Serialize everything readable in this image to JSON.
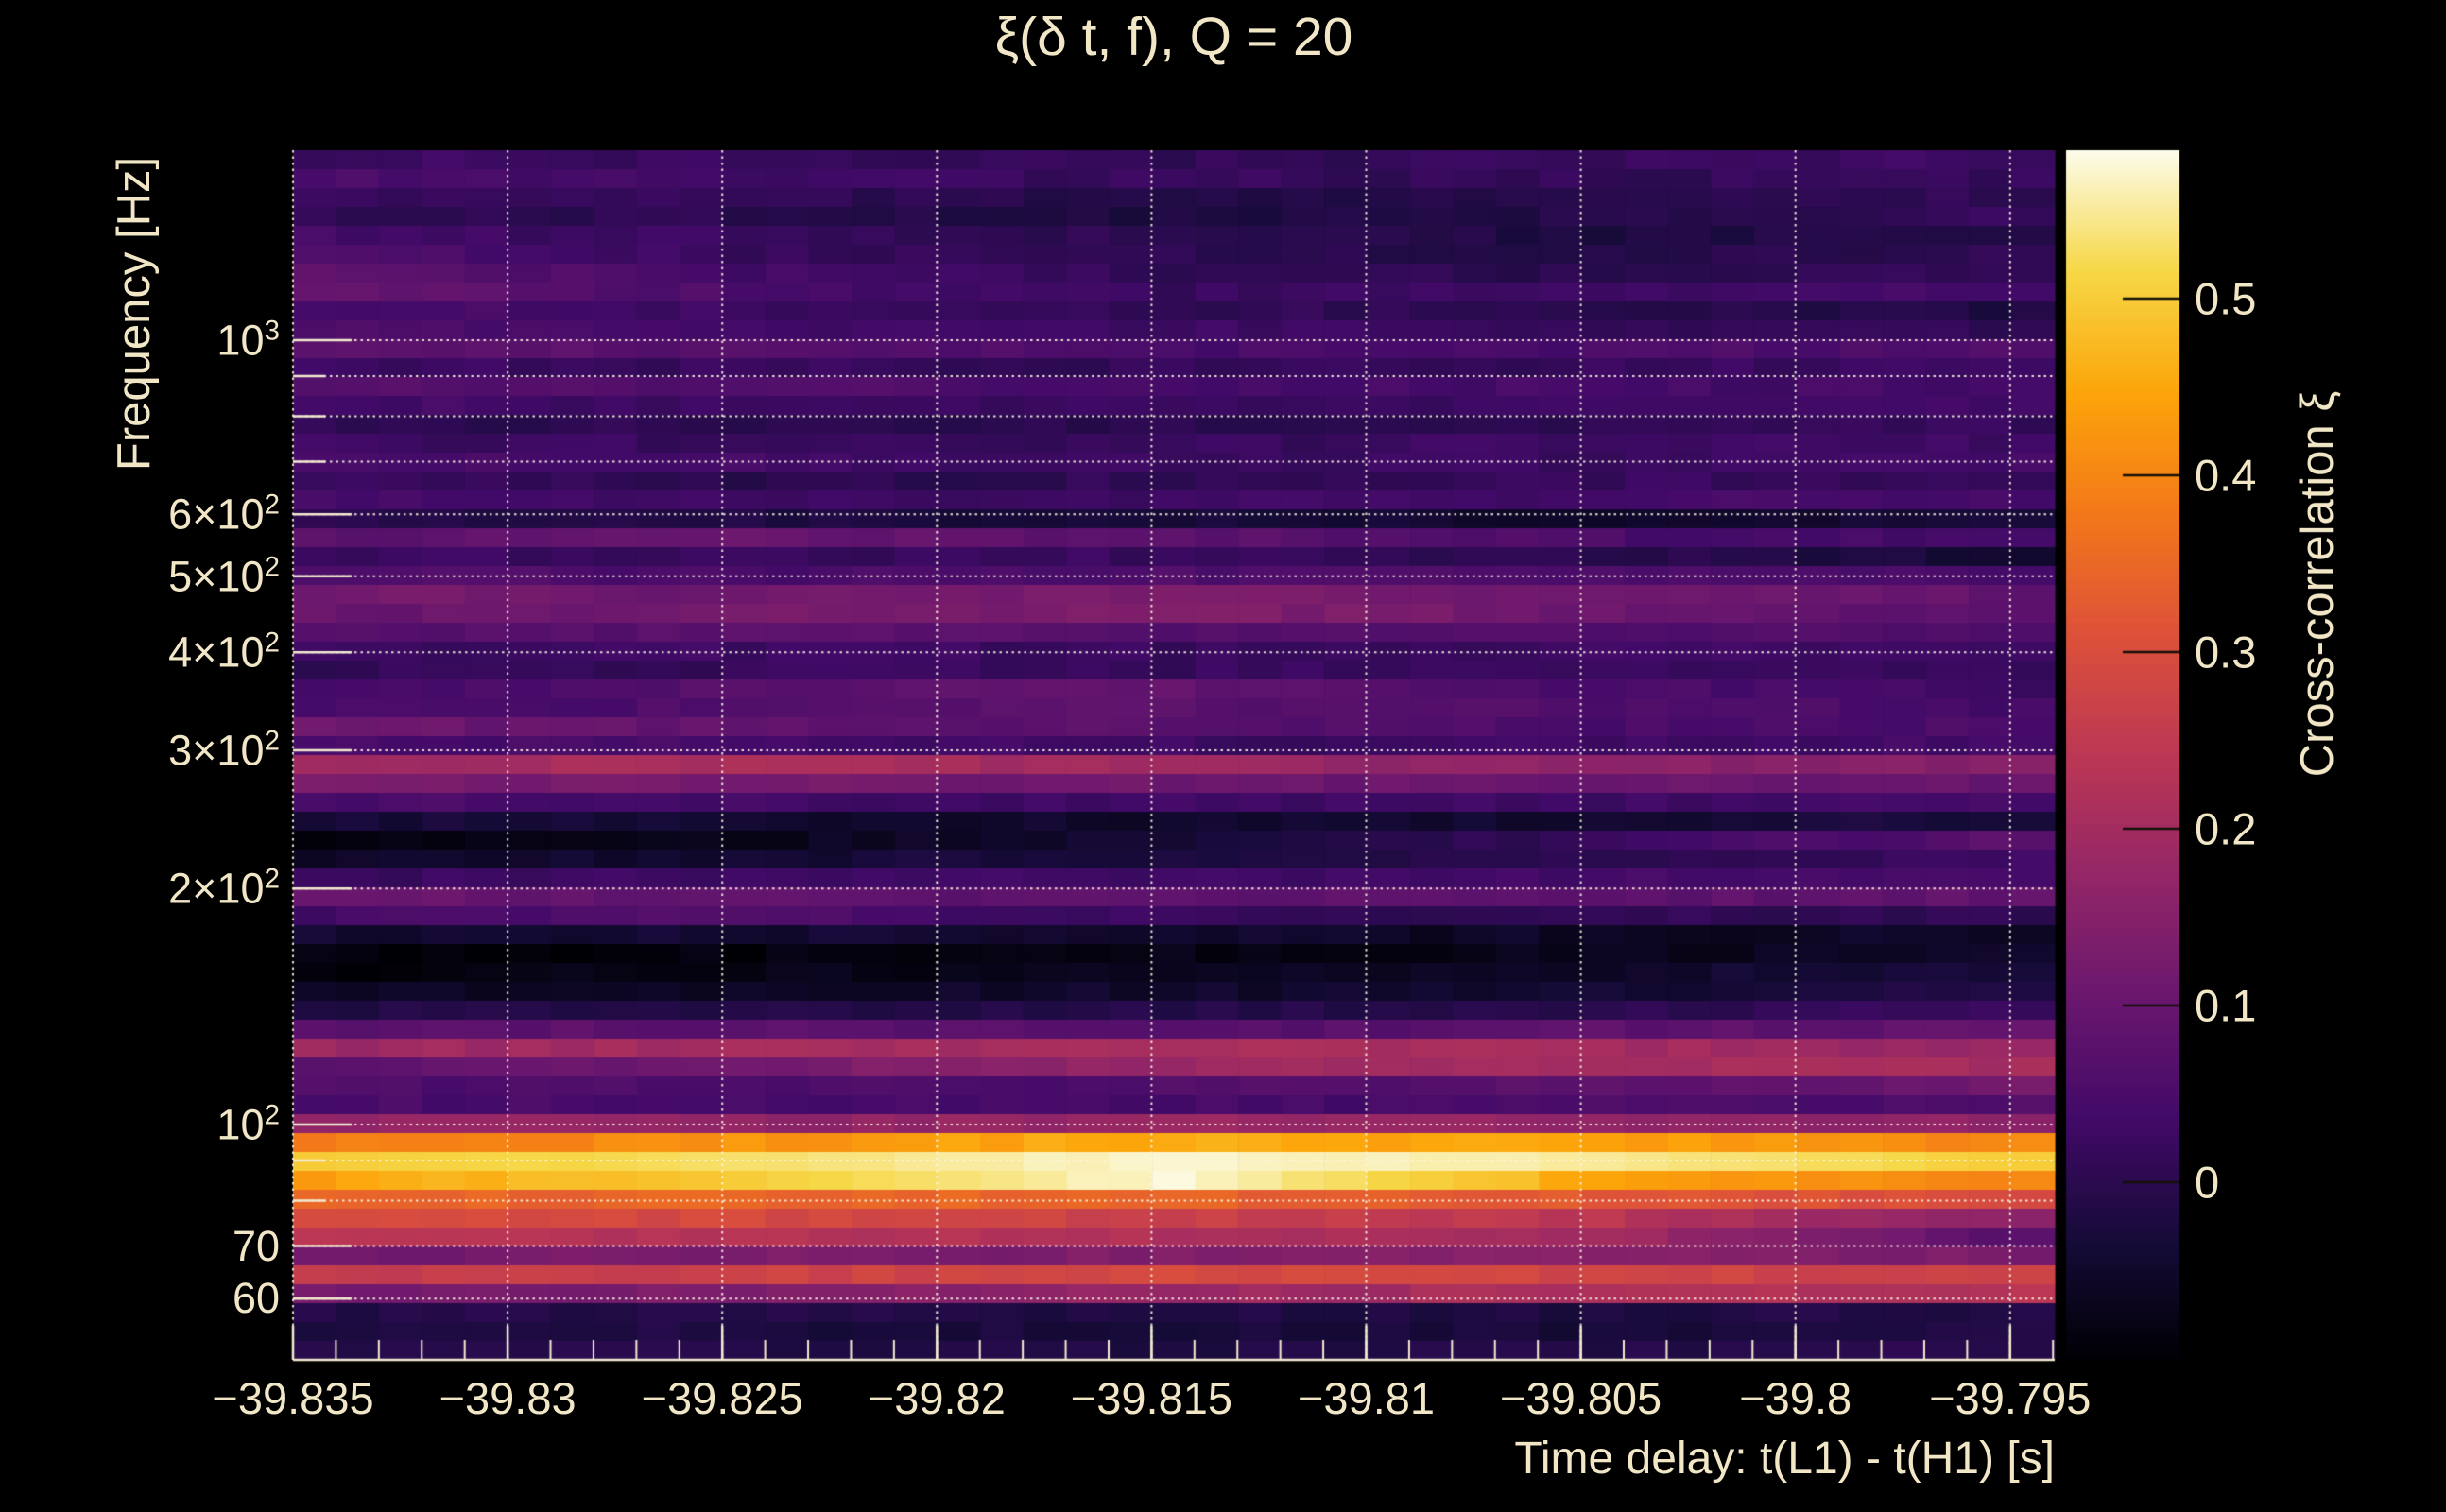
{
  "background": "#000000",
  "text_color": "#f1e7c7",
  "chart_data": {
    "type": "heatmap",
    "title": "ξ(δ t, f), Q = 20",
    "xlabel": "Time delay: t(L1) - t(H1) [s]",
    "ylabel": "Frequency [Hz]",
    "x_range": [
      -39.835,
      -39.794
    ],
    "y_range_hz": [
      50.1,
      1747
    ],
    "y_scale": "log",
    "grid": "dotted gridlines at x major ticks and at log-decade minor frequencies",
    "x_ticks": {
      "major_values": [
        -39.835,
        -39.83,
        -39.825,
        -39.82,
        -39.815,
        -39.81,
        -39.805,
        -39.8,
        -39.795
      ],
      "major_labels": [
        "−39.835",
        "−39.83",
        "−39.825",
        "−39.82",
        "−39.815",
        "−39.81",
        "−39.805",
        "−39.8",
        "−39.795"
      ],
      "minor_step": 0.001
    },
    "y_ticks": {
      "labeled": [
        {
          "f": 1000,
          "base": "10",
          "exp": "3"
        },
        {
          "f": 600,
          "base": "6×10",
          "exp": "2"
        },
        {
          "f": 500,
          "base": "5×10",
          "exp": "2"
        },
        {
          "f": 400,
          "base": "4×10",
          "exp": "2"
        },
        {
          "f": 300,
          "base": "3×10",
          "exp": "2"
        },
        {
          "f": 200,
          "base": "2×10",
          "exp": "2"
        },
        {
          "f": 100,
          "base": "10",
          "exp": "2"
        },
        {
          "f": 70,
          "base": "70",
          "exp": ""
        },
        {
          "f": 60,
          "base": "60",
          "exp": ""
        }
      ],
      "grid_frequencies": [
        1000,
        900,
        800,
        700,
        600,
        500,
        400,
        300,
        200,
        100,
        90,
        80,
        70,
        60
      ]
    },
    "colorbar": {
      "label": "Cross-correlation ξ",
      "ticks": [
        0,
        0.1,
        0.2,
        0.3,
        0.4,
        0.5
      ],
      "tick_labels": [
        "0",
        "0.1",
        "0.2",
        "0.3",
        "0.4",
        "0.5"
      ],
      "vmin": -0.1005,
      "vmax": 0.584,
      "colormap": "inferno",
      "anchors": [
        [
          0,
          0,
          4
        ],
        [
          22,
          11,
          57
        ],
        [
          66,
          10,
          104
        ],
        [
          106,
          23,
          110
        ],
        [
          147,
          38,
          103
        ],
        [
          188,
          55,
          84
        ],
        [
          221,
          81,
          58
        ],
        [
          243,
          120,
          25
        ],
        [
          252,
          165,
          10
        ],
        [
          246,
          215,
          70
        ],
        [
          252,
          252,
          235
        ]
      ]
    },
    "n_time_columns": 41,
    "n_freq_rows": 64,
    "rows_note": "64 log-spaced frequency rows, top (1747 Hz) to bottom (50 Hz); each row gives cross-correlation ξ at 5 evenly spaced time control points across the x range",
    "rows": [
      [
        0.03,
        0.02,
        0.01,
        0.02,
        0.03
      ],
      [
        0.05,
        0.03,
        0.02,
        0.01,
        0.02
      ],
      [
        0.02,
        0.01,
        -0.01,
        0.0,
        0.01
      ],
      [
        0.01,
        0.0,
        -0.02,
        -0.01,
        0.02
      ],
      [
        0.04,
        0.02,
        0.0,
        -0.02,
        0.0
      ],
      [
        0.06,
        0.02,
        0.0,
        -0.01,
        0.01
      ],
      [
        0.09,
        0.04,
        0.01,
        0.0,
        0.02
      ],
      [
        0.1,
        0.05,
        0.02,
        0.03,
        0.04
      ],
      [
        0.05,
        0.03,
        0.01,
        0.0,
        -0.02
      ],
      [
        0.06,
        0.04,
        0.03,
        0.02,
        0.01
      ],
      [
        0.09,
        0.07,
        0.05,
        0.05,
        0.06
      ],
      [
        0.03,
        0.02,
        0.01,
        0.02,
        0.03
      ],
      [
        0.07,
        0.06,
        0.05,
        0.04,
        0.04
      ],
      [
        0.04,
        0.03,
        0.02,
        0.03,
        0.03
      ],
      [
        0.01,
        0.0,
        0.0,
        0.01,
        0.02
      ],
      [
        0.03,
        0.02,
        0.02,
        0.03,
        0.03
      ],
      [
        0.05,
        0.04,
        0.03,
        0.02,
        0.04
      ],
      [
        0.02,
        0.0,
        0.01,
        0.02,
        0.02
      ],
      [
        0.04,
        0.03,
        0.03,
        0.04,
        0.04
      ],
      [
        0.0,
        -0.02,
        -0.03,
        -0.05,
        -0.03
      ],
      [
        0.08,
        0.1,
        0.08,
        0.05,
        0.03
      ],
      [
        0.03,
        0.02,
        0.02,
        0.0,
        -0.04
      ],
      [
        0.06,
        0.05,
        0.06,
        0.05,
        0.04
      ],
      [
        0.12,
        0.11,
        0.13,
        0.11,
        0.09
      ],
      [
        0.1,
        0.12,
        0.14,
        0.11,
        0.08
      ],
      [
        0.07,
        0.08,
        0.07,
        0.06,
        0.05
      ],
      [
        0.03,
        0.03,
        0.02,
        0.03,
        0.03
      ],
      [
        0.01,
        0.02,
        0.02,
        0.03,
        0.02
      ],
      [
        0.04,
        0.07,
        0.09,
        0.05,
        0.03
      ],
      [
        0.04,
        0.06,
        0.08,
        0.06,
        0.04
      ],
      [
        0.11,
        0.09,
        0.07,
        0.05,
        0.05
      ],
      [
        0.05,
        0.04,
        0.03,
        0.03,
        0.04
      ],
      [
        0.2,
        0.21,
        0.19,
        0.16,
        0.15
      ],
      [
        0.13,
        0.12,
        0.11,
        0.1,
        0.1
      ],
      [
        0.05,
        0.04,
        0.03,
        0.03,
        0.04
      ],
      [
        -0.03,
        -0.04,
        -0.05,
        -0.04,
        -0.02
      ],
      [
        -0.08,
        -0.07,
        -0.04,
        0.02,
        0.08
      ],
      [
        -0.05,
        -0.04,
        -0.02,
        0.0,
        0.03
      ],
      [
        0.02,
        0.03,
        0.03,
        0.04,
        0.05
      ],
      [
        0.1,
        0.09,
        0.08,
        0.08,
        0.09
      ],
      [
        0.04,
        0.06,
        0.02,
        0.01,
        0.01
      ],
      [
        -0.04,
        -0.04,
        -0.05,
        -0.06,
        -0.05
      ],
      [
        -0.09,
        -0.09,
        -0.08,
        -0.07,
        -0.05
      ],
      [
        -0.09,
        -0.08,
        -0.07,
        -0.05,
        -0.03
      ],
      [
        -0.06,
        -0.06,
        -0.05,
        -0.04,
        -0.02
      ],
      [
        -0.02,
        -0.01,
        -0.01,
        0.0,
        0.02
      ],
      [
        0.08,
        0.08,
        0.07,
        0.08,
        0.09
      ],
      [
        0.19,
        0.2,
        0.21,
        0.2,
        0.18
      ],
      [
        0.08,
        0.12,
        0.18,
        0.21,
        0.2
      ],
      [
        0.06,
        0.05,
        0.06,
        0.08,
        0.12
      ],
      [
        0.05,
        0.04,
        0.04,
        0.05,
        0.06
      ],
      [
        0.17,
        0.17,
        0.18,
        0.17,
        0.16
      ],
      [
        0.38,
        0.42,
        0.46,
        0.44,
        0.4
      ],
      [
        0.5,
        0.53,
        0.575,
        0.55,
        0.5
      ],
      [
        0.44,
        0.5,
        0.575,
        0.45,
        0.4
      ],
      [
        0.34,
        0.35,
        0.34,
        0.32,
        0.3
      ],
      [
        0.3,
        0.29,
        0.27,
        0.24,
        0.15
      ],
      [
        0.23,
        0.23,
        0.22,
        0.2,
        0.07
      ],
      [
        0.12,
        0.13,
        0.14,
        0.15,
        0.13
      ],
      [
        0.26,
        0.27,
        0.29,
        0.28,
        0.27
      ],
      [
        0.12,
        0.14,
        0.18,
        0.22,
        0.23
      ],
      [
        -0.01,
        -0.01,
        -0.02,
        -0.02,
        -0.01
      ],
      [
        -0.03,
        -0.02,
        -0.03,
        -0.03,
        -0.02
      ],
      [
        -0.01,
        -0.01,
        -0.02,
        -0.01,
        0.0
      ]
    ]
  }
}
